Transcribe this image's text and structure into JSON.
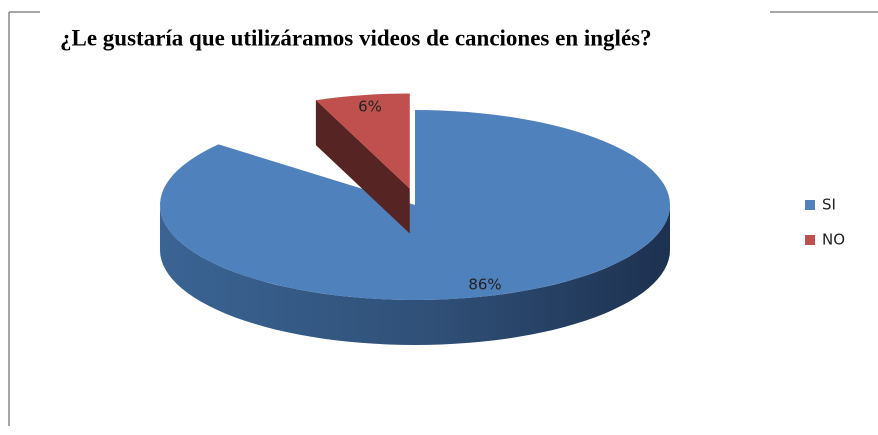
{
  "chart_data": {
    "type": "pie3d",
    "title": "¿Le gustaría que utilizáramos videos de canciones en inglés?",
    "categories": [
      "SI",
      "NO"
    ],
    "values": [
      86,
      6
    ],
    "value_labels": [
      "86%",
      "6%"
    ],
    "colors": [
      "#4f81bd",
      "#c0504d"
    ],
    "legend": "right"
  }
}
